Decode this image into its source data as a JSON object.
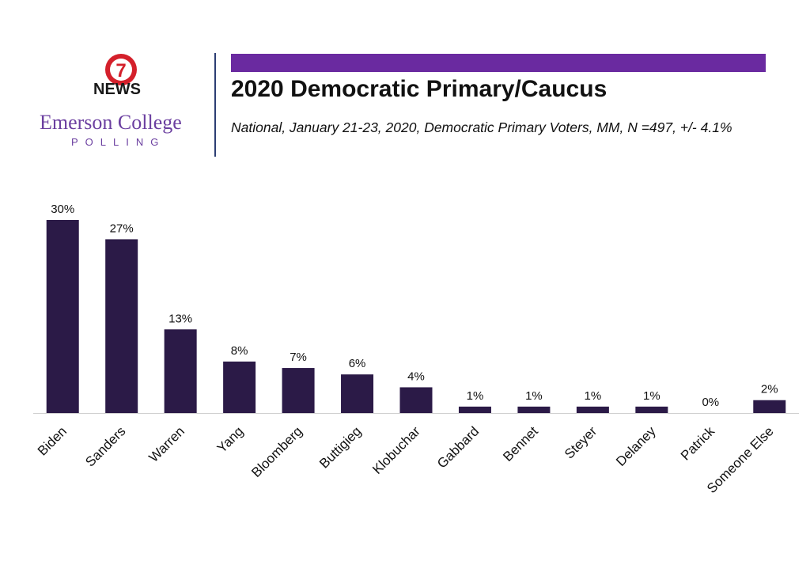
{
  "header": {
    "news_label": "NEWS",
    "news_badge_number": "7",
    "college_name": "Emerson College",
    "college_sub": "POLLING",
    "title": "2020 Democratic Primary/Caucus",
    "subtitle": "National, January 21-23, 2020, Democratic Primary Voters, MM, N =497, +/- 4.1%"
  },
  "colors": {
    "bar": "#2b1a47",
    "accent": "#6a2aa0",
    "brand_text": "#6b3fa0",
    "badge_red": "#d4202b"
  },
  "chart_data": {
    "type": "bar",
    "title": "2020 Democratic Primary/Caucus",
    "categories": [
      "Biden",
      "Sanders",
      "Warren",
      "Yang",
      "Bloomberg",
      "Buttigieg",
      "Klobuchar",
      "Gabbard",
      "Bennet",
      "Steyer",
      "Delaney",
      "Patrick",
      "Someone Else"
    ],
    "values": [
      30,
      27,
      13,
      8,
      7,
      6,
      4,
      1,
      1,
      1,
      1,
      0,
      2
    ],
    "labels": [
      "30%",
      "27%",
      "13%",
      "8%",
      "7%",
      "6%",
      "4%",
      "1%",
      "1%",
      "1%",
      "1%",
      "0%",
      "2%"
    ],
    "xlabel": "",
    "ylabel": "",
    "ylim": [
      0,
      30
    ],
    "grid": false,
    "legend": "none"
  }
}
